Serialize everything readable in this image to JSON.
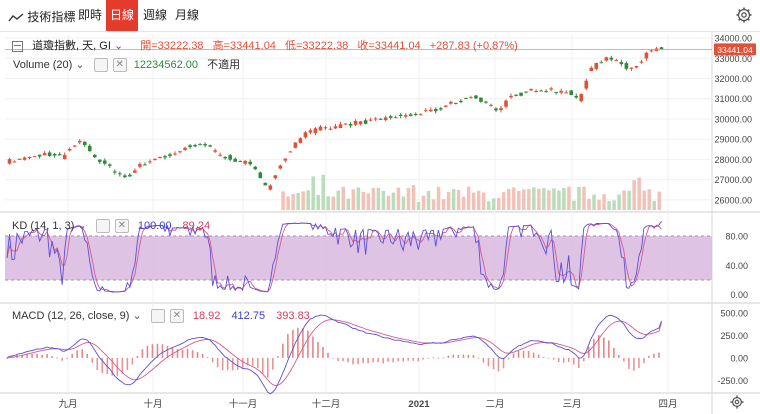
{
  "toolbar": {
    "logo_label": "技術指標",
    "buttons": [
      {
        "label": "即時",
        "active": false
      },
      {
        "label": "日線",
        "active": true
      },
      {
        "label": "週線",
        "active": false
      },
      {
        "label": "月線",
        "active": false
      }
    ]
  },
  "main_legend": {
    "symbol": "道瓊指數, 天, GI",
    "open": "開=33222.38",
    "high": "高=33441.04",
    "low": "低=33222.38",
    "close": "收=33441.04",
    "change": "+287.83 (+0.87%)",
    "last_price_tag": "33441.04"
  },
  "volume_legend": {
    "label": "Volume (20)",
    "value": "12234562.00",
    "extra": "不適用"
  },
  "kd_legend": {
    "label": "KD (14, 1, 3)",
    "k": "100.00",
    "d": "89.24"
  },
  "macd_legend": {
    "label": "MACD (12, 26, close, 9)",
    "hist": "18.92",
    "macd": "412.75",
    "signal": "393.83"
  },
  "colors": {
    "up": "#e0513a",
    "down": "#2e8b3a",
    "accent": "#e53b2c",
    "vol_up": "#f2c2b8",
    "vol_down": "#b9dcb9",
    "k": "#5b4fd6",
    "d": "#d45a8f",
    "kd_band": "#d9b8e0"
  },
  "chart_data": [
    {
      "type": "candlestick",
      "title": "道瓊指數",
      "x_labels": [
        "九月",
        "十月",
        "十一月",
        "十二月",
        "2021",
        "二月",
        "三月",
        "四月"
      ],
      "y_ticks": [
        26000,
        27000,
        28000,
        29000,
        30000,
        31000,
        32000,
        33000,
        34000
      ],
      "ylim": [
        25500,
        34200
      ],
      "last": 33441.04,
      "close_path": [
        [
          0,
          27900
        ],
        [
          10,
          28100
        ],
        [
          16,
          28300
        ],
        [
          22,
          28100
        ],
        [
          26,
          28600
        ],
        [
          30,
          28900
        ],
        [
          36,
          28000
        ],
        [
          40,
          27700
        ],
        [
          44,
          27300
        ],
        [
          48,
          27150
        ],
        [
          52,
          27600
        ],
        [
          56,
          27900
        ],
        [
          60,
          28100
        ],
        [
          66,
          28200
        ],
        [
          72,
          28600
        ],
        [
          78,
          28800
        ],
        [
          84,
          28300
        ],
        [
          90,
          28000
        ],
        [
          96,
          27800
        ],
        [
          100,
          27300
        ],
        [
          104,
          26600
        ],
        [
          108,
          27500
        ],
        [
          112,
          28300
        ],
        [
          118,
          29200
        ],
        [
          124,
          29500
        ],
        [
          130,
          29600
        ],
        [
          138,
          29800
        ],
        [
          146,
          29900
        ],
        [
          154,
          30100
        ],
        [
          162,
          30200
        ],
        [
          170,
          30400
        ],
        [
          176,
          30700
        ],
        [
          182,
          31000
        ],
        [
          186,
          31100
        ],
        [
          190,
          30900
        ],
        [
          196,
          30400
        ],
        [
          200,
          31000
        ],
        [
          206,
          31300
        ],
        [
          212,
          31500
        ],
        [
          218,
          31400
        ],
        [
          224,
          31300
        ],
        [
          228,
          30900
        ],
        [
          232,
          32300
        ],
        [
          236,
          32800
        ],
        [
          240,
          33100
        ],
        [
          244,
          32800
        ],
        [
          248,
          32500
        ],
        [
          252,
          32800
        ],
        [
          256,
          33300
        ],
        [
          260,
          33441
        ]
      ]
    },
    {
      "type": "bar",
      "title": "Volume (20)",
      "note": "relative volume bars, visible from mid-October onward"
    },
    {
      "type": "line",
      "title": "KD (14, 1, 3)",
      "y_ticks": [
        0,
        40,
        80
      ],
      "ylim": [
        -10,
        110
      ],
      "band": [
        20,
        80
      ],
      "k_last": 100.0,
      "d_last": 89.24
    },
    {
      "type": "line",
      "title": "MACD (12, 26, close, 9)",
      "y_ticks": [
        -250,
        0,
        250,
        500
      ],
      "ylim": [
        -380,
        600
      ],
      "macd_last": 412.75,
      "signal_last": 393.83,
      "hist_last": 18.92
    }
  ]
}
